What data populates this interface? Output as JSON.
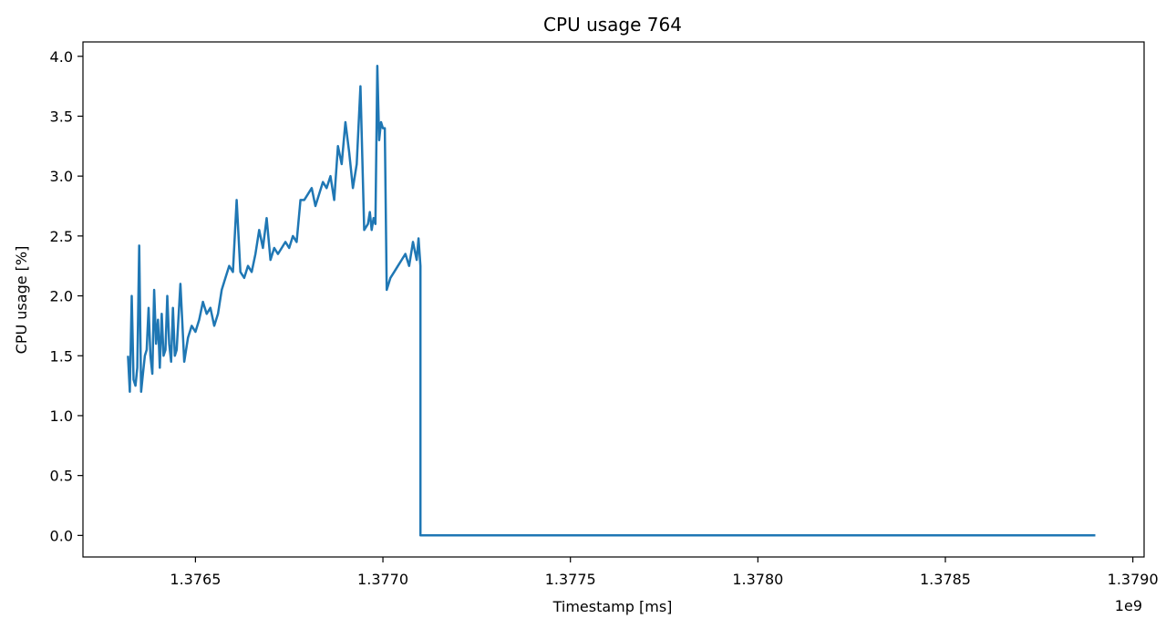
{
  "chart_data": {
    "type": "line",
    "title": "CPU usage 764",
    "xlabel": "Timestamp [ms]",
    "ylabel": "CPU usage [%]",
    "x_offset_label": "1e9",
    "xlim": [
      1376200000,
      1379030000
    ],
    "ylim": [
      -0.18,
      4.12
    ],
    "x_ticks": [
      1376500000,
      1377000000,
      1377500000,
      1378000000,
      1378500000,
      1379000000
    ],
    "x_tick_labels": [
      "1.3765",
      "1.3770",
      "1.3775",
      "1.3780",
      "1.3785",
      "1.3790"
    ],
    "y_ticks": [
      0.0,
      0.5,
      1.0,
      1.5,
      2.0,
      2.5,
      3.0,
      3.5,
      4.0
    ],
    "y_tick_labels": [
      "0.0",
      "0.5",
      "1.0",
      "1.5",
      "2.0",
      "2.5",
      "3.0",
      "3.5",
      "4.0"
    ],
    "grid": false,
    "colors": {
      "series": "#1f77b4"
    },
    "series": [
      {
        "x": [
          1376320000,
          1376325000,
          1376330000,
          1376335000,
          1376340000,
          1376345000,
          1376350000,
          1376355000,
          1376360000,
          1376365000,
          1376370000,
          1376375000,
          1376380000,
          1376385000,
          1376390000,
          1376395000,
          1376400000,
          1376405000,
          1376410000,
          1376415000,
          1376420000,
          1376425000,
          1376430000,
          1376435000,
          1376440000,
          1376445000,
          1376450000,
          1376460000,
          1376470000,
          1376480000,
          1376490000,
          1376500000,
          1376510000,
          1376520000,
          1376530000,
          1376540000,
          1376550000,
          1376560000,
          1376570000,
          1376580000,
          1376590000,
          1376600000,
          1376610000,
          1376620000,
          1376630000,
          1376640000,
          1376650000,
          1376660000,
          1376670000,
          1376680000,
          1376690000,
          1376700000,
          1376710000,
          1376720000,
          1376730000,
          1376740000,
          1376750000,
          1376760000,
          1376770000,
          1376780000,
          1376790000,
          1376800000,
          1376810000,
          1376820000,
          1376830000,
          1376840000,
          1376850000,
          1376860000,
          1376870000,
          1376880000,
          1376890000,
          1376900000,
          1376910000,
          1376920000,
          1376930000,
          1376940000,
          1376950000,
          1376960000,
          1376965000,
          1376970000,
          1376975000,
          1376980000,
          1376985000,
          1376990000,
          1376995000,
          1377000000,
          1377005000,
          1377010000,
          1377020000,
          1377030000,
          1377040000,
          1377050000,
          1377060000,
          1377070000,
          1377080000,
          1377090000,
          1377095000,
          1377100000,
          1377100000,
          1378900000
        ],
        "y": [
          1.5,
          1.2,
          2.0,
          1.3,
          1.25,
          1.4,
          2.42,
          1.2,
          1.35,
          1.5,
          1.55,
          1.9,
          1.5,
          1.35,
          2.05,
          1.6,
          1.8,
          1.4,
          1.85,
          1.5,
          1.55,
          2.0,
          1.6,
          1.45,
          1.9,
          1.5,
          1.55,
          2.1,
          1.45,
          1.65,
          1.75,
          1.7,
          1.8,
          1.95,
          1.85,
          1.9,
          1.75,
          1.85,
          2.05,
          2.15,
          2.25,
          2.2,
          2.8,
          2.2,
          2.15,
          2.25,
          2.2,
          2.35,
          2.55,
          2.4,
          2.65,
          2.3,
          2.4,
          2.35,
          2.4,
          2.45,
          2.4,
          2.5,
          2.45,
          2.8,
          2.8,
          2.85,
          2.9,
          2.75,
          2.85,
          2.95,
          2.9,
          3.0,
          2.8,
          3.25,
          3.1,
          3.45,
          3.2,
          2.9,
          3.1,
          3.75,
          2.55,
          2.6,
          2.7,
          2.55,
          2.65,
          2.6,
          3.92,
          3.3,
          3.45,
          3.4,
          3.4,
          2.05,
          2.15,
          2.2,
          2.25,
          2.3,
          2.35,
          2.25,
          2.45,
          2.3,
          2.48,
          2.25,
          0.0,
          0.0
        ]
      }
    ]
  }
}
